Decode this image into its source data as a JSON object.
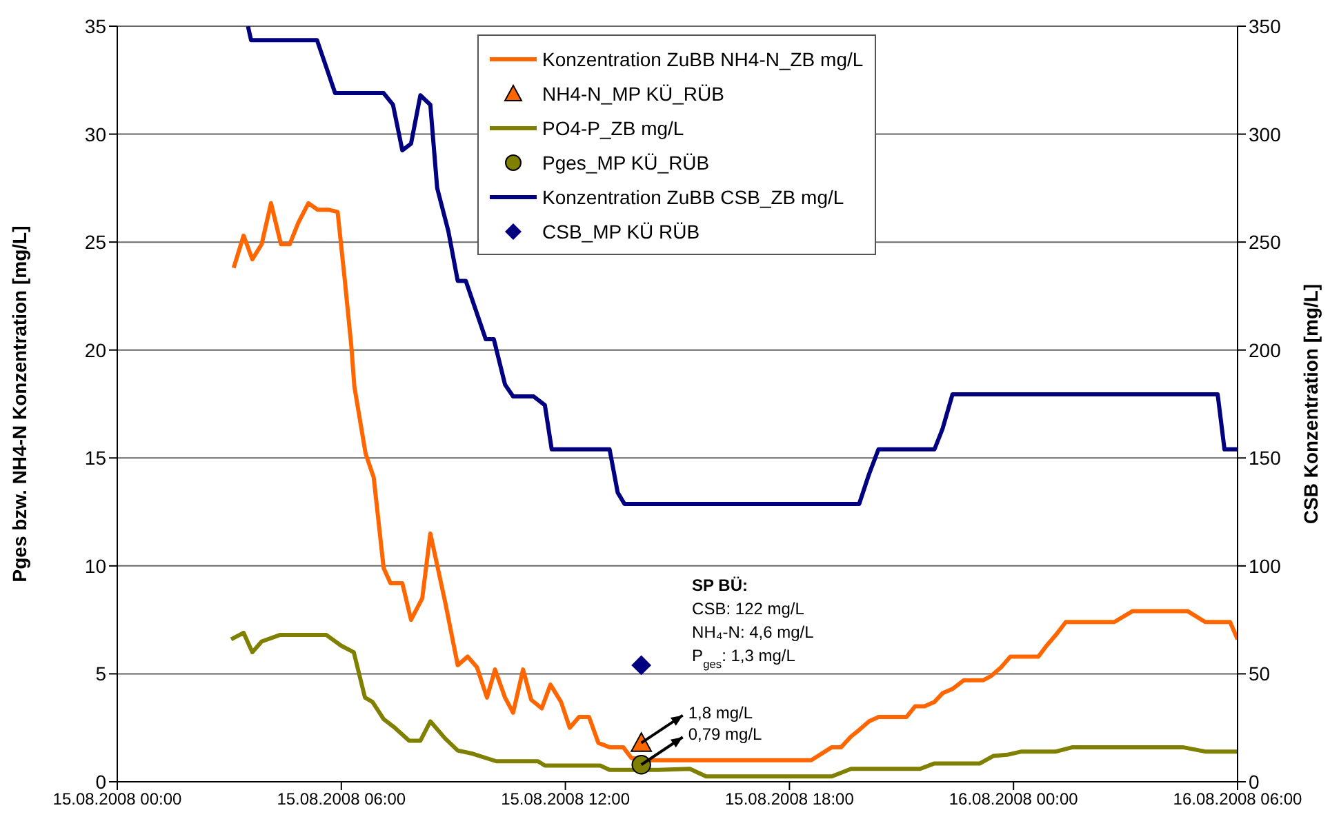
{
  "chart_data": {
    "type": "line",
    "ylabel": "Pges bzw. NH4-N Konzentration [mg/L]",
    "y2label": "CSB Konzentration [mg/L]",
    "xlim": [
      "2008-08-15T00:00",
      "2008-08-16T06:00"
    ],
    "xticks": [
      {
        "value": "2008-08-15T00:00",
        "label": "15.08.2008 00:00"
      },
      {
        "value": "2008-08-15T06:00",
        "label": "15.08.2008 06:00"
      },
      {
        "value": "2008-08-15T12:00",
        "label": "15.08.2008 12:00"
      },
      {
        "value": "2008-08-15T18:00",
        "label": "15.08.2008 18:00"
      },
      {
        "value": "2008-08-16T00:00",
        "label": "16.08.2008 00:00"
      },
      {
        "value": "2008-08-16T06:00",
        "label": "16.08.2008 06:00"
      }
    ],
    "ylim": [
      0,
      35
    ],
    "yticks": [
      0,
      5,
      10,
      15,
      20,
      25,
      30,
      35
    ],
    "y2lim": [
      0,
      350
    ],
    "y2ticks": [
      0,
      50,
      100,
      150,
      200,
      250,
      300,
      350
    ],
    "grid": "y",
    "legend": "top",
    "line_style": "solid",
    "series": [
      {
        "name": "Konzentration ZuBB NH4-N_ZB mg/L",
        "marker": "none",
        "color": "#ff6600",
        "x": [
          "2008-08-15T03:07",
          "2008-08-15T03:23",
          "2008-08-15T03:37",
          "2008-08-15T03:52",
          "2008-08-15T04:07",
          "2008-08-15T04:23",
          "2008-08-15T04:37",
          "2008-08-15T04:51",
          "2008-08-15T05:07",
          "2008-08-15T05:22",
          "2008-08-15T05:39",
          "2008-08-15T05:54",
          "2008-08-15T06:05",
          "2008-08-15T06:16",
          "2008-08-15T06:21",
          "2008-08-15T06:39",
          "2008-08-15T06:52",
          "2008-08-15T07:08",
          "2008-08-15T07:19",
          "2008-08-15T07:38",
          "2008-08-15T07:52",
          "2008-08-15T08:10",
          "2008-08-15T08:23",
          "2008-08-15T08:47",
          "2008-08-15T09:07",
          "2008-08-15T09:23",
          "2008-08-15T09:38",
          "2008-08-15T09:54",
          "2008-08-15T10:07",
          "2008-08-15T10:23",
          "2008-08-15T10:36",
          "2008-08-15T10:52",
          "2008-08-15T11:05",
          "2008-08-15T11:22",
          "2008-08-15T11:36",
          "2008-08-15T11:53",
          "2008-08-15T12:07",
          "2008-08-15T12:22",
          "2008-08-15T12:38",
          "2008-08-15T12:53",
          "2008-08-15T13:11",
          "2008-08-15T13:33",
          "2008-08-15T13:46",
          "2008-08-15T14:13",
          "2008-08-15T18:35",
          "2008-08-15T19:08",
          "2008-08-15T19:23",
          "2008-08-15T19:39",
          "2008-08-15T19:52",
          "2008-08-15T20:08",
          "2008-08-15T20:23",
          "2008-08-15T21:08",
          "2008-08-15T21:22",
          "2008-08-15T21:37",
          "2008-08-15T21:53",
          "2008-08-15T22:06",
          "2008-08-15T22:22",
          "2008-08-15T22:40",
          "2008-08-15T23:11",
          "2008-08-15T23:24",
          "2008-08-15T23:40",
          "2008-08-15T23:55",
          "2008-08-16T00:40",
          "2008-08-16T00:53",
          "2008-08-16T01:08",
          "2008-08-16T01:24",
          "2008-08-16T02:42",
          "2008-08-16T03:11",
          "2008-08-16T04:40",
          "2008-08-16T05:08",
          "2008-08-16T05:48",
          "2008-08-16T06:00"
        ],
        "values": [
          23.8,
          25.3,
          24.2,
          24.9,
          26.8,
          24.9,
          24.9,
          25.9,
          26.8,
          26.5,
          26.5,
          26.4,
          23.4,
          20.2,
          18.3,
          15.2,
          14.1,
          9.9,
          9.2,
          9.2,
          7.5,
          8.5,
          11.5,
          8.3,
          5.4,
          5.8,
          5.3,
          3.9,
          5.2,
          3.9,
          3.2,
          5.2,
          3.8,
          3.4,
          4.5,
          3.7,
          2.5,
          3,
          3,
          1.8,
          1.6,
          1.6,
          1.1,
          1,
          1,
          1.6,
          1.6,
          2.1,
          2.4,
          2.8,
          3,
          3,
          3.5,
          3.5,
          3.7,
          4.1,
          4.3,
          4.7,
          4.7,
          4.9,
          5.3,
          5.8,
          5.8,
          6.3,
          6.8,
          7.4,
          7.4,
          7.9,
          7.9,
          7.4,
          7.4,
          6.6
        ]
      },
      {
        "name": "NH4-N_MP KÜ_RÜB",
        "type": "scatter",
        "marker": "triangle",
        "color": "#ff6600",
        "x": [
          "2008-08-15T14:02"
        ],
        "values": [
          1.8
        ]
      },
      {
        "name": "PO4-P_ZB mg/L",
        "marker": "none",
        "color": "#808000",
        "x": [
          "2008-08-15T03:03",
          "2008-08-15T03:23",
          "2008-08-15T03:37",
          "2008-08-15T03:52",
          "2008-08-15T04:21",
          "2008-08-15T05:36",
          "2008-08-15T06:00",
          "2008-08-15T06:20",
          "2008-08-15T06:38",
          "2008-08-15T06:50",
          "2008-08-15T07:08",
          "2008-08-15T07:26",
          "2008-08-15T07:49",
          "2008-08-15T08:07",
          "2008-08-15T08:23",
          "2008-08-15T08:47",
          "2008-08-15T09:07",
          "2008-08-15T09:31",
          "2008-08-15T10:09",
          "2008-08-15T11:16",
          "2008-08-15T11:27",
          "2008-08-15T12:56",
          "2008-08-15T13:11",
          "2008-08-15T14:29",
          "2008-08-15T15:20",
          "2008-08-15T15:46",
          "2008-08-15T19:08",
          "2008-08-15T19:39",
          "2008-08-15T21:30",
          "2008-08-15T21:53",
          "2008-08-15T23:06",
          "2008-08-15T23:28",
          "2008-08-15T23:50",
          "2008-08-16T00:13",
          "2008-08-16T01:08",
          "2008-08-16T01:35",
          "2008-08-16T04:32",
          "2008-08-16T05:08",
          "2008-08-16T06:00"
        ],
        "values": [
          6.6,
          6.9,
          6,
          6.5,
          6.8,
          6.8,
          6.3,
          6,
          3.9,
          3.7,
          2.9,
          2.5,
          1.9,
          1.9,
          2.8,
          2,
          1.45,
          1.3,
          0.95,
          0.95,
          0.75,
          0.75,
          0.55,
          0.55,
          0.6,
          0.25,
          0.25,
          0.6,
          0.6,
          0.85,
          0.85,
          1.2,
          1.25,
          1.4,
          1.4,
          1.6,
          1.6,
          1.4,
          1.4
        ]
      },
      {
        "name": "Pges_MP KÜ_RÜB",
        "type": "scatter",
        "marker": "circle",
        "color": "#808000",
        "x": [
          "2008-08-15T14:02"
        ],
        "values": [
          0.79
        ]
      },
      {
        "name": "Konzentration ZuBB CSB_ZB mg/L",
        "marker": "none",
        "axis": "y2",
        "color": "#000080",
        "x": [
          "2008-08-15T03:30",
          "2008-08-15T03:35",
          "2008-08-15T05:21",
          "2008-08-15T05:50",
          "2008-08-15T07:08",
          "2008-08-15T07:23",
          "2008-08-15T07:38",
          "2008-08-15T07:52",
          "2008-08-15T08:07",
          "2008-08-15T08:23",
          "2008-08-15T08:34",
          "2008-08-15T08:52",
          "2008-08-15T09:07",
          "2008-08-15T09:20",
          "2008-08-15T09:52",
          "2008-08-15T10:05",
          "2008-08-15T10:23",
          "2008-08-15T10:36",
          "2008-08-15T11:09",
          "2008-08-15T11:27",
          "2008-08-15T11:38",
          "2008-08-15T13:11",
          "2008-08-15T13:24",
          "2008-08-15T13:35",
          "2008-08-15T19:52",
          "2008-08-15T20:08",
          "2008-08-15T20:23",
          "2008-08-15T21:53",
          "2008-08-15T22:06",
          "2008-08-15T22:22",
          "2008-08-16T05:28",
          "2008-08-16T05:39",
          "2008-08-16T06:00"
        ],
        "values": [
          350,
          343.5,
          343.5,
          319,
          319,
          313.6,
          292.5,
          295.6,
          318,
          313.6,
          275,
          255,
          232,
          232,
          205,
          205,
          184,
          178.5,
          178.5,
          174.5,
          154,
          154,
          134,
          128.7,
          128.7,
          142.6,
          154,
          154,
          163.5,
          179.5,
          179.5,
          154,
          154
        ]
      },
      {
        "name": "CSB_MP KÜ RÜB",
        "type": "scatter",
        "marker": "diamond",
        "axis": "y2",
        "color": "#000080",
        "x": [
          "2008-08-15T14:02"
        ],
        "values": [
          54
        ]
      }
    ],
    "annotations": [
      "SP BÜ:",
      "CSB: 122 mg/L",
      "NH₄-N: 4,6 mg/L",
      "P$_{ges}$: 1,3 mg/L",
      {
        "text": "1,8 mg/L",
        "x": "2008-08-15T14:02",
        "y": 1.8
      },
      {
        "text": "0,79 mg/L",
        "x": "2008-08-15T14:02",
        "y": 0.79
      }
    ]
  }
}
